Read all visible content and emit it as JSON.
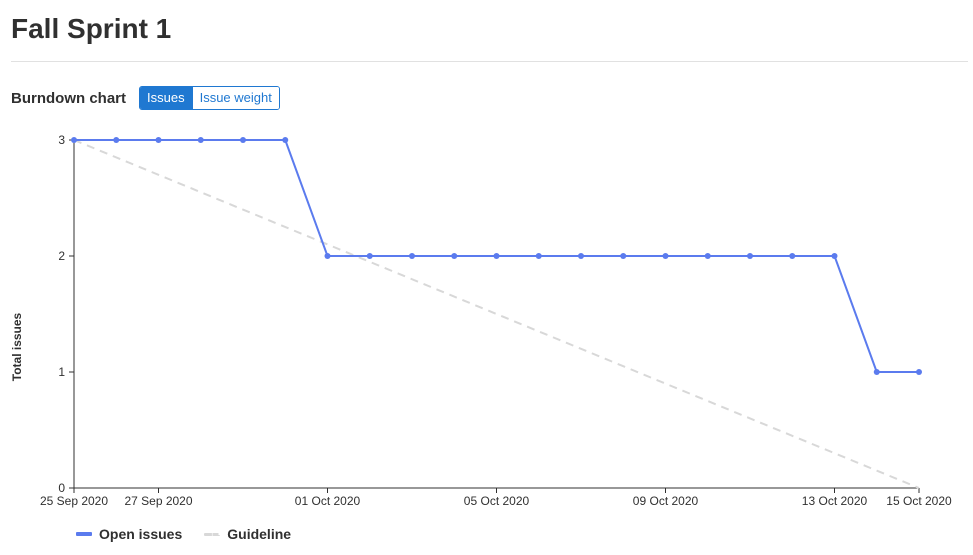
{
  "page": {
    "title": "Fall Sprint 1"
  },
  "burndown": {
    "title": "Burndown chart",
    "toggle": {
      "issues_label": "Issues",
      "weight_label": "Issue weight",
      "active": "issues"
    }
  },
  "colors": {
    "open_issues": "#5b7bee",
    "guideline": "#d8d8d8",
    "accent": "#1f78d1",
    "axis": "#303030"
  },
  "chart_data": {
    "type": "line",
    "ylabel": "Total issues",
    "xlabel": "",
    "ylim": [
      0,
      3
    ],
    "yticks": [
      0,
      1,
      2,
      3
    ],
    "x": [
      "2020-09-25",
      "2020-09-26",
      "2020-09-27",
      "2020-09-28",
      "2020-09-29",
      "2020-09-30",
      "2020-10-01",
      "2020-10-02",
      "2020-10-03",
      "2020-10-04",
      "2020-10-05",
      "2020-10-06",
      "2020-10-07",
      "2020-10-08",
      "2020-10-09",
      "2020-10-10",
      "2020-10-11",
      "2020-10-12",
      "2020-10-13",
      "2020-10-14",
      "2020-10-15"
    ],
    "xtick_labels": [
      {
        "date": "2020-09-25",
        "label": "25 Sep 2020"
      },
      {
        "date": "2020-09-27",
        "label": "27 Sep 2020"
      },
      {
        "date": "2020-10-01",
        "label": "01 Oct 2020"
      },
      {
        "date": "2020-10-05",
        "label": "05 Oct 2020"
      },
      {
        "date": "2020-10-09",
        "label": "09 Oct 2020"
      },
      {
        "date": "2020-10-13",
        "label": "13 Oct 2020"
      },
      {
        "date": "2020-10-15",
        "label": "15 Oct 2020"
      }
    ],
    "series": [
      {
        "name": "Open issues",
        "style": "solid",
        "values": [
          3,
          3,
          3,
          3,
          3,
          3,
          2,
          2,
          2,
          2,
          2,
          2,
          2,
          2,
          2,
          2,
          2,
          2,
          2,
          1,
          1
        ]
      },
      {
        "name": "Guideline",
        "style": "dashed",
        "points": [
          {
            "x": "2020-09-25",
            "y": 3
          },
          {
            "x": "2020-10-15",
            "y": 0
          }
        ]
      }
    ],
    "legend": "bottom-left",
    "grid": false
  }
}
